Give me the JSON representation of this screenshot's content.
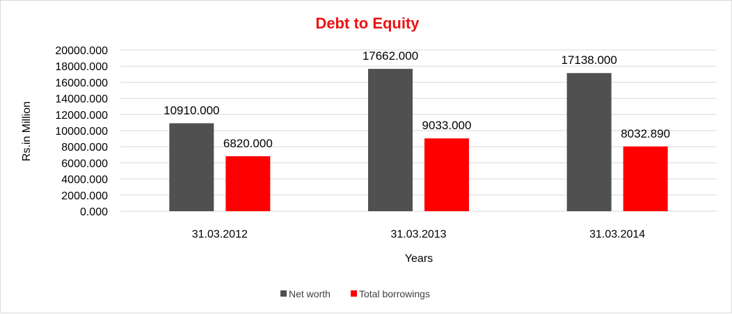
{
  "chart_data": {
    "type": "bar",
    "title": "Debt to Equity",
    "title_color": "#ee1111",
    "xlabel": "Years",
    "ylabel": "Rs.in Million",
    "categories": [
      "31.03.2012",
      "31.03.2013",
      "31.03.2014"
    ],
    "series": [
      {
        "name": "Net worth",
        "color": "#505050",
        "values": [
          10910.0,
          17662.0,
          17138.0
        ],
        "labels": [
          "10910.000",
          "17662.000",
          "17138.000"
        ]
      },
      {
        "name": "Total borrowings",
        "color": "#ff0000",
        "values": [
          6820.0,
          9033.0,
          8032.89
        ],
        "labels": [
          "6820.000",
          "9033.000",
          "8032.890"
        ]
      }
    ],
    "ylim": [
      0,
      20000
    ],
    "y_ticks": [
      "0.000",
      "2000.000",
      "4000.000",
      "6000.000",
      "8000.000",
      "10000.000",
      "12000.000",
      "14000.000",
      "16000.000",
      "18000.000",
      "20000.000"
    ],
    "grid": true,
    "gridline_color": "#d9d9d9",
    "legend_position": "bottom"
  }
}
